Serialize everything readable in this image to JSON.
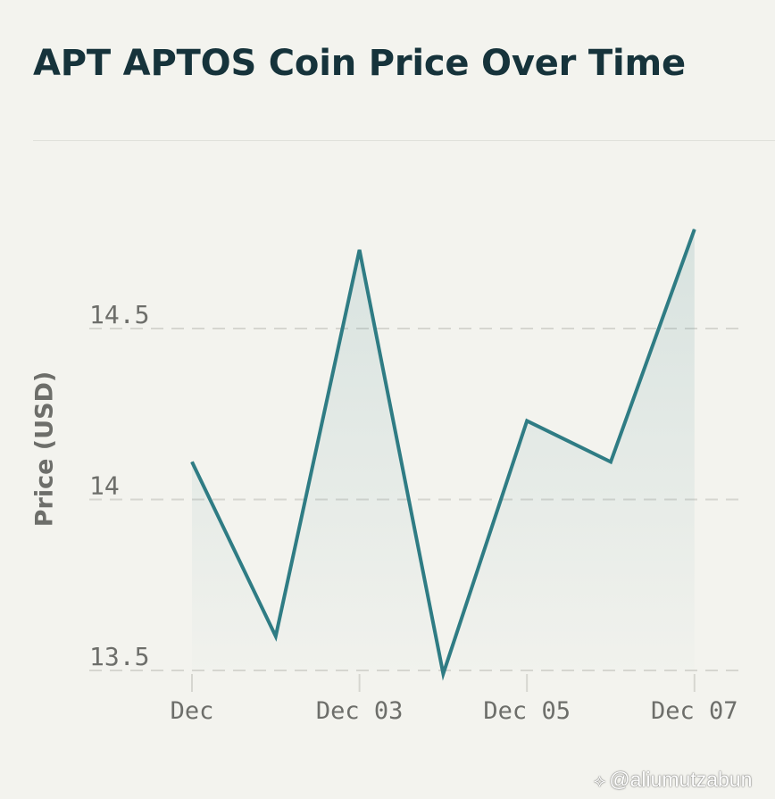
{
  "chart_data": {
    "type": "area",
    "title": "APT APTOS Coin Price Over Time",
    "xlabel": "",
    "ylabel": "Price (USD)",
    "x": [
      "Dec 01",
      "Dec 02",
      "Dec 03",
      "Dec 04",
      "Dec 05",
      "Dec 06",
      "Dec 07"
    ],
    "x_tick_labels": [
      "Dec",
      "Dec 03",
      "Dec 05",
      "Dec 07"
    ],
    "x_tick_positions": [
      "Dec 01",
      "Dec 03",
      "Dec 05",
      "Dec 07"
    ],
    "series": [
      {
        "values": [
          14.11,
          13.6,
          14.73,
          13.49,
          14.23,
          14.11,
          14.79
        ]
      }
    ],
    "y_ticks": [
      13.5,
      14,
      14.5
    ],
    "y_tick_labels": [
      "13.5",
      "14",
      "14.5"
    ],
    "ylim": [
      13.5,
      14.5
    ],
    "grid": "horizontal dashed",
    "legend": "none",
    "colors": {
      "line": "#2f7c84",
      "grid": "#d6d6d0",
      "axis_text": "#6d6e6a"
    }
  },
  "watermark": {
    "icon": "binance-logo-icon",
    "text": "@aliumutzabun"
  }
}
